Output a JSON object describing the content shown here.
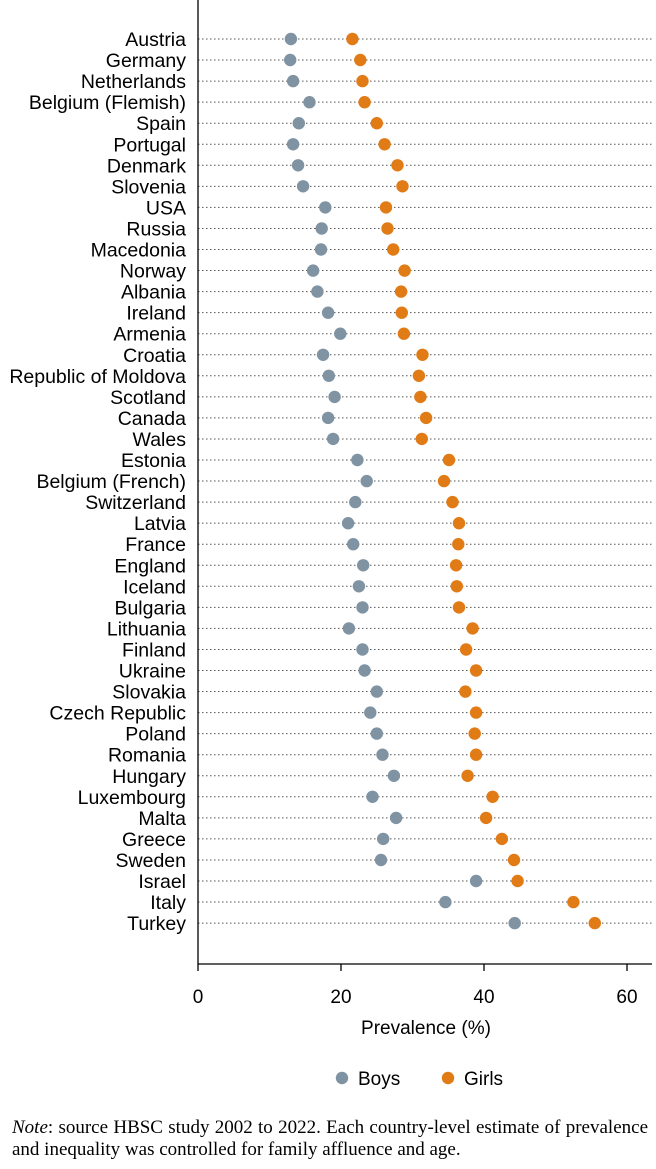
{
  "chart_data": {
    "type": "scatter",
    "xlabel": "Prevalence (%)",
    "xlim": [
      0,
      63
    ],
    "xticks": [
      0,
      20,
      40,
      60
    ],
    "grid": "dotted horizontal lines per country",
    "legend_position": "bottom-center",
    "colors": {
      "boys": "#7f93a3",
      "girls": "#e07b16"
    },
    "categories": [
      "Austria",
      "Germany",
      "Netherlands",
      "Belgium (Flemish)",
      "Spain",
      "Portugal",
      "Denmark",
      "Slovenia",
      "USA",
      "Russia",
      "Macedonia",
      "Norway",
      "Albania",
      "Ireland",
      "Armenia",
      "Croatia",
      "Republic of Moldova",
      "Scotland",
      "Canada",
      "Wales",
      "Estonia",
      "Belgium (French)",
      "Switzerland",
      "Latvia",
      "France",
      "England",
      "Iceland",
      "Bulgaria",
      "Lithuania",
      "Finland",
      "Ukraine",
      "Slovakia",
      "Czech Republic",
      "Poland",
      "Romania",
      "Hungary",
      "Luxembourg",
      "Malta",
      "Greece",
      "Sweden",
      "Israel",
      "Italy",
      "Turkey"
    ],
    "series": [
      {
        "name": "Boys",
        "values": [
          13.0,
          12.9,
          13.3,
          15.6,
          14.1,
          13.3,
          14.0,
          14.7,
          17.8,
          17.3,
          17.2,
          16.1,
          16.7,
          18.2,
          19.9,
          17.5,
          18.3,
          19.1,
          18.2,
          18.9,
          22.3,
          23.6,
          22.0,
          21.0,
          21.7,
          23.1,
          22.5,
          23.0,
          21.1,
          23.0,
          23.3,
          25.0,
          24.1,
          25.0,
          25.8,
          27.4,
          24.4,
          27.7,
          25.9,
          25.6,
          38.9,
          34.6,
          44.3
        ]
      },
      {
        "name": "Girls",
        "values": [
          21.6,
          22.7,
          23.0,
          23.3,
          25.0,
          26.1,
          27.9,
          28.6,
          26.3,
          26.5,
          27.3,
          28.9,
          28.4,
          28.5,
          28.8,
          31.4,
          30.9,
          31.1,
          31.9,
          31.3,
          35.1,
          34.4,
          35.6,
          36.5,
          36.4,
          36.1,
          36.2,
          36.5,
          38.4,
          37.5,
          38.9,
          37.4,
          38.9,
          38.7,
          38.9,
          37.7,
          41.2,
          40.3,
          42.5,
          44.2,
          44.7,
          52.5,
          55.5
        ]
      }
    ]
  },
  "note": {
    "label": "Note",
    "text": ": source HBSC study 2002 to 2022. Each country-level estimate of prevalence and inequality was controlled for family affluence and age."
  }
}
